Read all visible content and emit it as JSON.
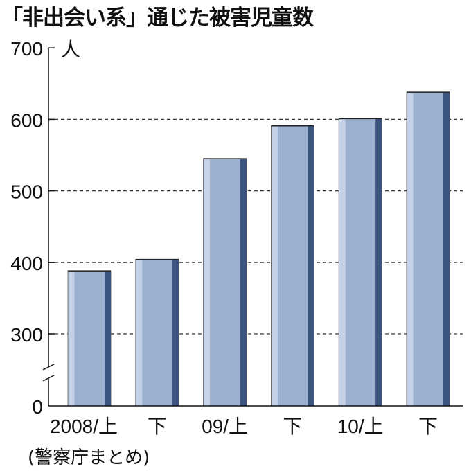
{
  "title": "「非出会い系」通じた被害児童数",
  "source": "(警察庁まとめ)",
  "chart_data": {
    "type": "bar",
    "title": "「非出会い系」通じた被害児童数",
    "unit": "人",
    "categories": [
      "2008/上",
      "下",
      "09/上",
      "下",
      "10/上",
      "下"
    ],
    "values": [
      388,
      404,
      545,
      591,
      601,
      638
    ],
    "yticks": [
      0,
      300,
      400,
      500,
      600,
      700
    ],
    "ylim": [
      0,
      700
    ],
    "axis_break": [
      0,
      300
    ],
    "grid": "dashed horizontal",
    "colors": {
      "bar_face": "#9cb0d0",
      "bar_highlight": "#c4d1e6",
      "bar_shadow": "#3c5580"
    }
  }
}
